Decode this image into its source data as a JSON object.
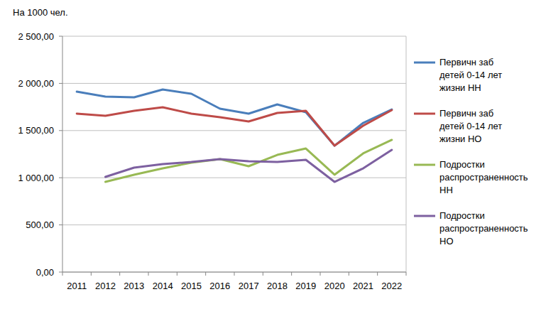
{
  "chart_data": {
    "type": "line",
    "y_label": "На 1000 чел.",
    "categories": [
      "2011",
      "2012",
      "2013",
      "2014",
      "2015",
      "2016",
      "2017",
      "2018",
      "2019",
      "2020",
      "2021",
      "2022"
    ],
    "series": [
      {
        "name": "Первичн заб детей 0-14 лет жизни НН",
        "color": "#4a7ebb",
        "values": [
          1912,
          1860,
          1852,
          1935,
          1890,
          1732,
          1679,
          1777,
          1694,
          1340,
          1581,
          1724
        ]
      },
      {
        "name": "Первичн заб детей 0-14 лет жизни НО",
        "color": "#be4b48",
        "values": [
          1679,
          1657,
          1709,
          1747,
          1679,
          1642,
          1596,
          1687,
          1709,
          1340,
          1551,
          1717
        ]
      },
      {
        "name": "Подростки распространенность НН",
        "color": "#98b954",
        "values": [
          null,
          956,
          1032,
          1099,
          1160,
          1197,
          1122,
          1242,
          1310,
          1032,
          1258,
          1401
        ]
      },
      {
        "name": "Подростки распространенность НО",
        "color": "#7d60a0",
        "values": [
          null,
          1009,
          1107,
          1145,
          1167,
          1197,
          1175,
          1167,
          1190,
          956,
          1099,
          1295
        ]
      }
    ],
    "ylim": [
      0,
      2500
    ],
    "yticks": [
      {
        "value": 0,
        "label": "0,00"
      },
      {
        "value": 500,
        "label": "500,00"
      },
      {
        "value": 1000,
        "label": "1 000,00"
      },
      {
        "value": 1500,
        "label": "1 500,00"
      },
      {
        "value": 2000,
        "label": "2 000,00"
      },
      {
        "value": 2500,
        "label": "2 500,00"
      }
    ],
    "grid": true,
    "legend": "right"
  }
}
